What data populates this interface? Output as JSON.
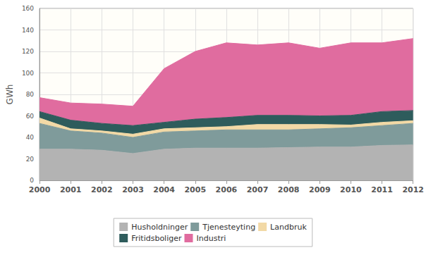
{
  "chart_data": {
    "type": "area",
    "stacked": true,
    "ylabel": "GWh",
    "categories": [
      "2000",
      "2001",
      "2002",
      "2003",
      "2004",
      "2005",
      "2006",
      "2007",
      "2008",
      "2009",
      "2010",
      "2011",
      "2012"
    ],
    "series": [
      {
        "name": "Husholdninger",
        "color": "#b3b3b3",
        "values": [
          29,
          29,
          28,
          25,
          29,
          30,
          30,
          30,
          30.5,
          31,
          31,
          32.5,
          33
        ]
      },
      {
        "name": "Tjenesteyting",
        "color": "#7f9b9b",
        "values": [
          24,
          17,
          16,
          15,
          16,
          16,
          17,
          17,
          16.5,
          17,
          18,
          18.5,
          20
        ]
      },
      {
        "name": "Landbruk",
        "color": "#f2d9a6",
        "values": [
          5,
          2,
          2,
          3,
          3,
          3,
          3,
          5,
          5,
          4,
          2.5,
          3,
          2.5
        ]
      },
      {
        "name": "Fritidsboliger",
        "color": "#2e5c5c",
        "values": [
          6,
          8,
          7,
          8,
          6,
          8,
          8.5,
          8.5,
          8.5,
          8,
          9,
          10,
          9.5
        ]
      },
      {
        "name": "Industri",
        "color": "#e06c9f",
        "values": [
          13,
          16,
          18,
          18,
          50,
          63,
          69.5,
          65.5,
          67.5,
          63,
          67.5,
          64,
          67
        ]
      }
    ],
    "ylim": [
      0,
      160
    ],
    "yticks": [
      0,
      20,
      40,
      60,
      80,
      100,
      120,
      140,
      160
    ],
    "grid": true,
    "legend": "bottom"
  }
}
